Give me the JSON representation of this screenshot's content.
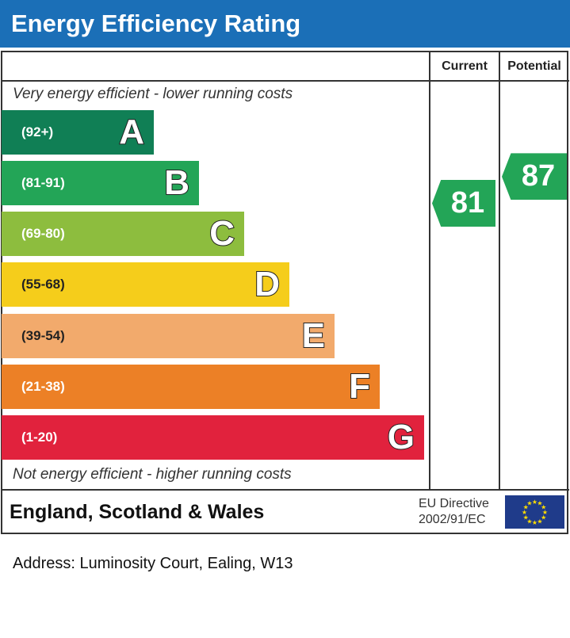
{
  "title": "Energy Efficiency Rating",
  "columns": {
    "current": "Current",
    "potential": "Potential"
  },
  "top_note": "Very energy efficient - lower running costs",
  "bottom_note": "Not energy efficient - higher running costs",
  "footer": {
    "region": "England, Scotland & Wales",
    "directive_line1": "EU Directive",
    "directive_line2": "2002/91/EC"
  },
  "address": "Address: Luminosity Court, Ealing, W13",
  "chart_data": {
    "type": "bar",
    "title": "Energy Efficiency Rating",
    "bands": [
      {
        "letter": "A",
        "range": "(92+)",
        "color": "#107f55"
      },
      {
        "letter": "B",
        "range": "(81-91)",
        "color": "#23a557"
      },
      {
        "letter": "C",
        "range": "(69-80)",
        "color": "#8dbd3e"
      },
      {
        "letter": "D",
        "range": "(55-68)",
        "color": "#f5cd1b"
      },
      {
        "letter": "E",
        "range": "(39-54)",
        "color": "#f2aa6c"
      },
      {
        "letter": "F",
        "range": "(21-38)",
        "color": "#ec8026"
      },
      {
        "letter": "G",
        "range": "(1-20)",
        "color": "#e1223d"
      }
    ],
    "current": {
      "value": "81",
      "band": "B",
      "color": "#23a557"
    },
    "potential": {
      "value": "87",
      "band": "B",
      "color": "#23a557"
    }
  }
}
